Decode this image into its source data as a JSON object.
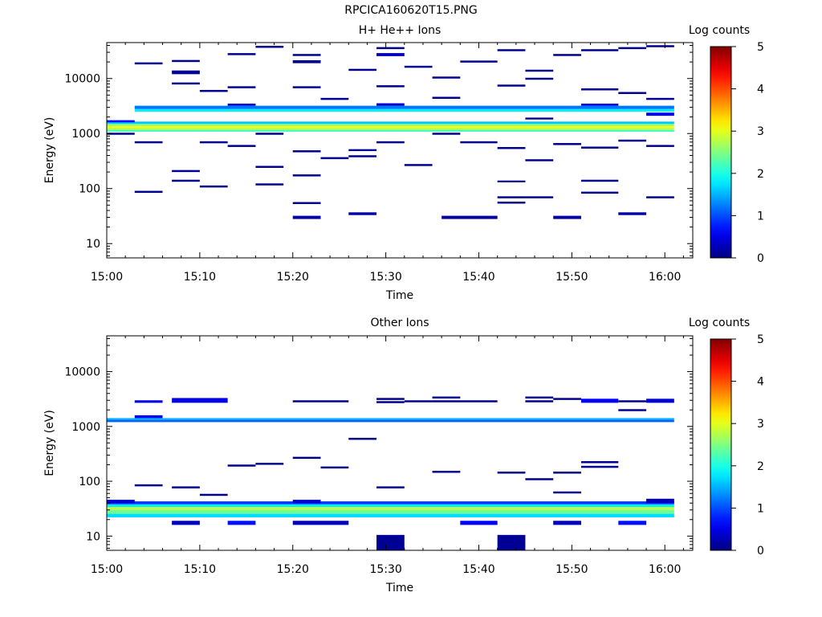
{
  "figure_title": "RPCICA160620T15.PNG",
  "chart_data": [
    {
      "type": "heatmap",
      "title": "H+ He++ Ions",
      "xlabel": "Time",
      "ylabel": "Energy (eV)",
      "y_scale": "log",
      "ylim": [
        5.5,
        45000
      ],
      "y_ticks": [
        10,
        100,
        1000,
        10000
      ],
      "y_tick_labels": [
        "10",
        "100",
        "1000",
        "10000"
      ],
      "x_ticks": [
        "15:00",
        "15:10",
        "15:20",
        "15:30",
        "15:40",
        "15:50",
        "16:00"
      ],
      "x_range": [
        "15:00",
        "16:03"
      ],
      "colorbar": {
        "label": "Log counts",
        "range": [
          0,
          5
        ],
        "ticks": [
          "0",
          "1",
          "2",
          "3",
          "4",
          "5"
        ],
        "colormap": "jet"
      },
      "cells": [
        {
          "t0": "15:00",
          "t1": "16:01",
          "e0": 1080,
          "e1": 1160,
          "v": 2.2
        },
        {
          "t0": "15:00",
          "t1": "16:01",
          "e0": 1160,
          "e1": 1260,
          "v": 2.7
        },
        {
          "t0": "15:00",
          "t1": "16:01",
          "e0": 1260,
          "e1": 1380,
          "v": 3.1
        },
        {
          "t0": "15:00",
          "t1": "16:01",
          "e0": 1380,
          "e1": 1500,
          "v": 2.5
        },
        {
          "t0": "15:00",
          "t1": "16:01",
          "e0": 1500,
          "e1": 1650,
          "v": 1.6
        },
        {
          "t0": "15:03",
          "t1": "16:01",
          "e0": 2500,
          "e1": 2800,
          "v": 1.8
        },
        {
          "t0": "15:03",
          "t1": "16:01",
          "e0": 2800,
          "e1": 3200,
          "v": 1.2
        },
        {
          "t0": "15:00",
          "t1": "15:03",
          "e0": 1600,
          "e1": 1750,
          "v": 0.7
        },
        {
          "t0": "15:13",
          "t1": "15:16",
          "e0": 3200,
          "e1": 3500,
          "v": 0.4
        },
        {
          "t0": "15:29",
          "t1": "15:32",
          "e0": 3200,
          "e1": 3550,
          "v": 0.4
        },
        {
          "t0": "15:51",
          "t1": "15:55",
          "e0": 3200,
          "e1": 3500,
          "v": 0.5
        },
        {
          "t0": "15:58",
          "t1": "16:01",
          "e0": 2100,
          "e1": 2400,
          "v": 0.5
        },
        {
          "t0": "15:29",
          "t1": "15:32",
          "e0": 25500,
          "e1": 29000,
          "v": 0.3
        },
        {
          "t0": "15:20",
          "t1": "15:23",
          "e0": 19000,
          "e1": 21500,
          "v": 0.1
        },
        {
          "t0": "15:07",
          "t1": "15:10",
          "e0": 12000,
          "e1": 14000,
          "v": 0.1
        },
        {
          "t0": "15:20",
          "t1": "15:23",
          "e0": 28,
          "e1": 32,
          "v": 0.2
        },
        {
          "t0": "15:26",
          "t1": "15:29",
          "e0": 33,
          "e1": 37,
          "v": 0.2
        },
        {
          "t0": "15:36",
          "t1": "15:42",
          "e0": 28,
          "e1": 32,
          "v": 0.15
        },
        {
          "t0": "15:48",
          "t1": "15:51",
          "e0": 28,
          "e1": 32,
          "v": 0.2
        },
        {
          "t0": "15:55",
          "t1": "15:58",
          "e0": 33,
          "e1": 37,
          "v": 0.2
        },
        {
          "t0": "15:26",
          "t1": "15:29",
          "e0": 480,
          "e1": 520,
          "v": 0.1
        },
        {
          "t0": "15:45",
          "t1": "15:48",
          "e0": 1800,
          "e1": 1950,
          "v": 0.1
        },
        {
          "t0": "15:42",
          "t1": "15:45",
          "e0": 130,
          "e1": 140,
          "v": 0.1
        }
      ],
      "lines": [
        {
          "t0": "15:03",
          "t1": "15:06",
          "e": 19000
        },
        {
          "t0": "15:07",
          "t1": "15:10",
          "e": 21000
        },
        {
          "t0": "15:13",
          "t1": "15:16",
          "e": 28000
        },
        {
          "t0": "15:16",
          "t1": "15:19",
          "e": 38000
        },
        {
          "t0": "15:20",
          "t1": "15:23",
          "e": 27000
        },
        {
          "t0": "15:26",
          "t1": "15:29",
          "e": 14500
        },
        {
          "t0": "15:29",
          "t1": "15:32",
          "e": 36000
        },
        {
          "t0": "15:32",
          "t1": "15:35",
          "e": 16500
        },
        {
          "t0": "15:35",
          "t1": "15:38",
          "e": 10500
        },
        {
          "t0": "15:38",
          "t1": "15:42",
          "e": 20500
        },
        {
          "t0": "15:42",
          "t1": "15:45",
          "e": 33000
        },
        {
          "t0": "15:45",
          "t1": "15:48",
          "e": 14000
        },
        {
          "t0": "15:48",
          "t1": "15:51",
          "e": 27000
        },
        {
          "t0": "15:51",
          "t1": "15:55",
          "e": 33000
        },
        {
          "t0": "15:55",
          "t1": "15:58",
          "e": 36000
        },
        {
          "t0": "15:58",
          "t1": "16:01",
          "e": 39000
        },
        {
          "t0": "15:07",
          "t1": "15:10",
          "e": 8200
        },
        {
          "t0": "15:10",
          "t1": "15:13",
          "e": 6000
        },
        {
          "t0": "15:13",
          "t1": "15:16",
          "e": 7000
        },
        {
          "t0": "15:20",
          "t1": "15:23",
          "e": 7000
        },
        {
          "t0": "15:23",
          "t1": "15:26",
          "e": 4300
        },
        {
          "t0": "15:29",
          "t1": "15:32",
          "e": 7300
        },
        {
          "t0": "15:35",
          "t1": "15:38",
          "e": 4500
        },
        {
          "t0": "15:42",
          "t1": "15:45",
          "e": 7500
        },
        {
          "t0": "15:45",
          "t1": "15:48",
          "e": 10000
        },
        {
          "t0": "15:51",
          "t1": "15:55",
          "e": 6400
        },
        {
          "t0": "15:55",
          "t1": "15:58",
          "e": 5500
        },
        {
          "t0": "15:58",
          "t1": "16:01",
          "e": 4300
        },
        {
          "t0": "15:00",
          "t1": "15:03",
          "e": 1000
        },
        {
          "t0": "15:03",
          "t1": "15:06",
          "e": 700
        },
        {
          "t0": "15:10",
          "t1": "15:13",
          "e": 700
        },
        {
          "t0": "15:13",
          "t1": "15:16",
          "e": 600
        },
        {
          "t0": "15:16",
          "t1": "15:19",
          "e": 1000
        },
        {
          "t0": "15:20",
          "t1": "15:23",
          "e": 480
        },
        {
          "t0": "15:23",
          "t1": "15:26",
          "e": 360
        },
        {
          "t0": "15:29",
          "t1": "15:32",
          "e": 700
        },
        {
          "t0": "15:35",
          "t1": "15:38",
          "e": 1000
        },
        {
          "t0": "15:38",
          "t1": "15:42",
          "e": 700
        },
        {
          "t0": "15:42",
          "t1": "15:45",
          "e": 550
        },
        {
          "t0": "15:45",
          "t1": "15:48",
          "e": 330
        },
        {
          "t0": "15:48",
          "t1": "15:51",
          "e": 650
        },
        {
          "t0": "15:51",
          "t1": "15:55",
          "e": 560
        },
        {
          "t0": "15:55",
          "t1": "15:58",
          "e": 750
        },
        {
          "t0": "15:58",
          "t1": "16:01",
          "e": 600
        },
        {
          "t0": "15:03",
          "t1": "15:06",
          "e": 88
        },
        {
          "t0": "15:07",
          "t1": "15:10",
          "e": 210
        },
        {
          "t0": "15:07",
          "t1": "15:10",
          "e": 140
        },
        {
          "t0": "15:10",
          "t1": "15:13",
          "e": 110
        },
        {
          "t0": "15:16",
          "t1": "15:19",
          "e": 250
        },
        {
          "t0": "15:16",
          "t1": "15:19",
          "e": 120
        },
        {
          "t0": "15:20",
          "t1": "15:23",
          "e": 175
        },
        {
          "t0": "15:20",
          "t1": "15:23",
          "e": 55
        },
        {
          "t0": "15:26",
          "t1": "15:29",
          "e": 390
        },
        {
          "t0": "15:32",
          "t1": "15:35",
          "e": 270
        },
        {
          "t0": "15:42",
          "t1": "15:45",
          "e": 70
        },
        {
          "t0": "15:42",
          "t1": "15:45",
          "e": 56
        },
        {
          "t0": "15:45",
          "t1": "15:48",
          "e": 70
        },
        {
          "t0": "15:51",
          "t1": "15:55",
          "e": 140
        },
        {
          "t0": "15:51",
          "t1": "15:55",
          "e": 85
        },
        {
          "t0": "15:58",
          "t1": "16:01",
          "e": 70
        }
      ]
    },
    {
      "type": "heatmap",
      "title": "Other Ions",
      "xlabel": "Time",
      "ylabel": "Energy (eV)",
      "y_scale": "log",
      "ylim": [
        5.5,
        45000
      ],
      "y_ticks": [
        10,
        100,
        1000,
        10000
      ],
      "y_tick_labels": [
        "10",
        "100",
        "1000",
        "10000"
      ],
      "x_ticks": [
        "15:00",
        "15:10",
        "15:20",
        "15:30",
        "15:40",
        "15:50",
        "16:00"
      ],
      "x_range": [
        "15:00",
        "16:03"
      ],
      "colorbar": {
        "label": "Log counts",
        "range": [
          0,
          5
        ],
        "ticks": [
          "0",
          "1",
          "2",
          "3",
          "4",
          "5"
        ],
        "colormap": "jet"
      },
      "cells": [
        {
          "t0": "15:00",
          "t1": "16:01",
          "e0": 22,
          "e1": 25.5,
          "v": 1.7
        },
        {
          "t0": "15:00",
          "t1": "16:01",
          "e0": 25.5,
          "e1": 30,
          "v": 2.4
        },
        {
          "t0": "15:00",
          "t1": "16:01",
          "e0": 30,
          "e1": 34,
          "v": 2.8
        },
        {
          "t0": "15:00",
          "t1": "16:01",
          "e0": 34,
          "e1": 38,
          "v": 1.8
        },
        {
          "t0": "15:00",
          "t1": "16:01",
          "e0": 38,
          "e1": 43,
          "v": 0.9
        },
        {
          "t0": "15:00",
          "t1": "16:01",
          "e0": 1200,
          "e1": 1320,
          "v": 1.1
        },
        {
          "t0": "15:00",
          "t1": "16:01",
          "e0": 1320,
          "e1": 1420,
          "v": 1.5
        },
        {
          "t0": "15:07",
          "t1": "15:10",
          "e0": 16,
          "e1": 19,
          "v": 0.3
        },
        {
          "t0": "15:13",
          "t1": "15:16",
          "e0": 16,
          "e1": 19,
          "v": 0.7
        },
        {
          "t0": "15:20",
          "t1": "15:26",
          "e0": 16,
          "e1": 19,
          "v": 0.3
        },
        {
          "t0": "15:38",
          "t1": "15:42",
          "e0": 16,
          "e1": 19,
          "v": 0.6
        },
        {
          "t0": "15:48",
          "t1": "15:51",
          "e0": 16,
          "e1": 19,
          "v": 0.3
        },
        {
          "t0": "15:55",
          "t1": "15:58",
          "e0": 16,
          "e1": 19,
          "v": 0.7
        },
        {
          "t0": "15:29",
          "t1": "15:32",
          "e0": 5.5,
          "e1": 10.5,
          "v": 0.1
        },
        {
          "t0": "15:42",
          "t1": "15:45",
          "e0": 5.5,
          "e1": 10.5,
          "v": 0.1
        },
        {
          "t0": "15:03",
          "t1": "15:06",
          "e0": 2700,
          "e1": 3000,
          "v": 0.5
        },
        {
          "t0": "15:07",
          "t1": "15:13",
          "e0": 2700,
          "e1": 3300,
          "v": 0.5
        },
        {
          "t0": "15:51",
          "t1": "15:55",
          "e0": 2700,
          "e1": 3200,
          "v": 0.6
        },
        {
          "t0": "15:58",
          "t1": "16:01",
          "e0": 2700,
          "e1": 3200,
          "v": 0.4
        },
        {
          "t0": "15:03",
          "t1": "15:06",
          "e0": 1420,
          "e1": 1600,
          "v": 0.6
        },
        {
          "t0": "15:00",
          "t1": "15:03",
          "e0": 40,
          "e1": 46,
          "v": 0.4
        },
        {
          "t0": "15:20",
          "t1": "15:23",
          "e0": 40,
          "e1": 46,
          "v": 0.4
        },
        {
          "t0": "15:58",
          "t1": "16:01",
          "e0": 40,
          "e1": 48,
          "v": 0.3
        }
      ],
      "lines": [
        {
          "t0": "15:03",
          "t1": "15:06",
          "e": 85
        },
        {
          "t0": "15:07",
          "t1": "15:10",
          "e": 78
        },
        {
          "t0": "15:10",
          "t1": "15:13",
          "e": 57
        },
        {
          "t0": "15:13",
          "t1": "15:16",
          "e": 195
        },
        {
          "t0": "15:16",
          "t1": "15:19",
          "e": 210
        },
        {
          "t0": "15:20",
          "t1": "15:23",
          "e": 270
        },
        {
          "t0": "15:23",
          "t1": "15:26",
          "e": 180
        },
        {
          "t0": "15:26",
          "t1": "15:29",
          "e": 600
        },
        {
          "t0": "15:29",
          "t1": "15:32",
          "e": 78
        },
        {
          "t0": "15:35",
          "t1": "15:38",
          "e": 150
        },
        {
          "t0": "15:42",
          "t1": "15:45",
          "e": 145
        },
        {
          "t0": "15:45",
          "t1": "15:48",
          "e": 110
        },
        {
          "t0": "15:48",
          "t1": "15:51",
          "e": 145
        },
        {
          "t0": "15:48",
          "t1": "15:51",
          "e": 63
        },
        {
          "t0": "15:51",
          "t1": "15:55",
          "e": 225
        },
        {
          "t0": "15:51",
          "t1": "15:55",
          "e": 185
        },
        {
          "t0": "15:55",
          "t1": "15:58",
          "e": 2000
        },
        {
          "t0": "15:20",
          "t1": "15:26",
          "e": 2900
        },
        {
          "t0": "15:29",
          "t1": "15:32",
          "e": 3200
        },
        {
          "t0": "15:29",
          "t1": "15:32",
          "e": 2800
        },
        {
          "t0": "15:32",
          "t1": "15:35",
          "e": 2900
        },
        {
          "t0": "15:35",
          "t1": "15:38",
          "e": 3400
        },
        {
          "t0": "15:35",
          "t1": "15:42",
          "e": 2900
        },
        {
          "t0": "15:45",
          "t1": "15:48",
          "e": 3400
        },
        {
          "t0": "15:45",
          "t1": "15:48",
          "e": 2900
        },
        {
          "t0": "15:48",
          "t1": "15:51",
          "e": 3200
        },
        {
          "t0": "15:55",
          "t1": "15:58",
          "e": 2900
        }
      ]
    }
  ]
}
